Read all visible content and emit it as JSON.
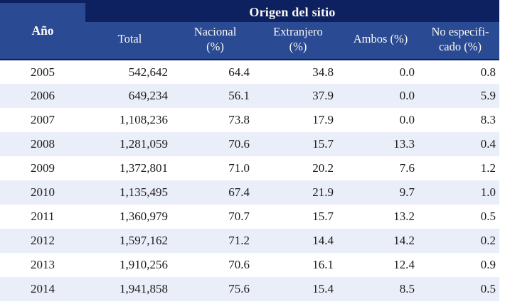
{
  "title_band": "Origen del sitio",
  "year_header": "Año",
  "column_headers": [
    {
      "name": "total",
      "lines": [
        "Total"
      ]
    },
    {
      "name": "nacional",
      "lines": [
        "Nacional",
        "(%)"
      ]
    },
    {
      "name": "extranjero",
      "lines": [
        "Extranjero",
        "(%)"
      ]
    },
    {
      "name": "ambos",
      "lines": [
        "Ambos (%)"
      ]
    },
    {
      "name": "no-especificado",
      "lines": [
        "No especifi-",
        "cado (%)"
      ]
    }
  ],
  "rows": [
    {
      "year": "2005",
      "total": "542,642",
      "nacional": "64.4",
      "extranjero": "34.8",
      "ambos": "0.0",
      "no_especificado": "0.8"
    },
    {
      "year": "2006",
      "total": "649,234",
      "nacional": "56.1",
      "extranjero": "37.9",
      "ambos": "0.0",
      "no_especificado": "5.9"
    },
    {
      "year": "2007",
      "total": "1,108,236",
      "nacional": "73.8",
      "extranjero": "17.9",
      "ambos": "0.0",
      "no_especificado": "8.3"
    },
    {
      "year": "2008",
      "total": "1,281,059",
      "nacional": "70.6",
      "extranjero": "15.7",
      "ambos": "13.3",
      "no_especificado": "0.4"
    },
    {
      "year": "2009",
      "total": "1,372,801",
      "nacional": "71.0",
      "extranjero": "20.2",
      "ambos": "7.6",
      "no_especificado": "1.2"
    },
    {
      "year": "2010",
      "total": "1,135,495",
      "nacional": "67.4",
      "extranjero": "21.9",
      "ambos": "9.7",
      "no_especificado": "1.0"
    },
    {
      "year": "2011",
      "total": "1,360,979",
      "nacional": "70.7",
      "extranjero": "15.7",
      "ambos": "13.2",
      "no_especificado": "0.5"
    },
    {
      "year": "2012",
      "total": "1,597,162",
      "nacional": "71.2",
      "extranjero": "14.4",
      "ambos": "14.2",
      "no_especificado": "0.2"
    },
    {
      "year": "2013",
      "total": "1,910,256",
      "nacional": "70.6",
      "extranjero": "16.1",
      "ambos": "12.4",
      "no_especificado": "0.9"
    },
    {
      "year": "2014",
      "total": "1,941,858",
      "nacional": "75.6",
      "extranjero": "15.4",
      "ambos": "8.5",
      "no_especificado": "0.5"
    }
  ],
  "colors": {
    "band": "#0d2060",
    "header": "#2a4a93",
    "row_alt": "#eaeef8",
    "row": "#ffffff",
    "text": "#1b1b1b",
    "header_text": "#fbfaf2"
  },
  "chart_data": {
    "type": "table",
    "title": "Origen del sitio",
    "columns": [
      "Año",
      "Total",
      "Nacional (%)",
      "Extranjero (%)",
      "Ambos (%)",
      "No especificado (%)"
    ],
    "rows": [
      [
        "2005",
        542642,
        64.4,
        34.8,
        0.0,
        0.8
      ],
      [
        "2006",
        649234,
        56.1,
        37.9,
        0.0,
        5.9
      ],
      [
        "2007",
        1108236,
        73.8,
        17.9,
        0.0,
        8.3
      ],
      [
        "2008",
        1281059,
        70.6,
        15.7,
        13.3,
        0.4
      ],
      [
        "2009",
        1372801,
        71.0,
        20.2,
        7.6,
        1.2
      ],
      [
        "2010",
        1135495,
        67.4,
        21.9,
        9.7,
        1.0
      ],
      [
        "2011",
        1360979,
        70.7,
        15.7,
        13.2,
        0.5
      ],
      [
        "2012",
        1597162,
        71.2,
        14.4,
        14.2,
        0.2
      ],
      [
        "2013",
        1910256,
        70.6,
        16.1,
        12.4,
        0.9
      ],
      [
        "2014",
        1941858,
        75.6,
        15.4,
        8.5,
        0.5
      ]
    ],
    "layout": {
      "striped_rows": true,
      "header_rows": 2,
      "numbers_right_aligned": true
    }
  }
}
